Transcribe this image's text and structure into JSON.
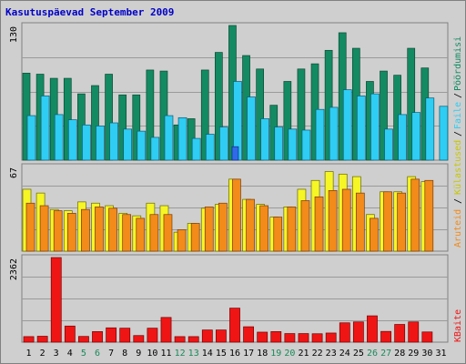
{
  "chart_data": {
    "type": "bar",
    "title": "Kasutuspäevad September 2009",
    "categories": [
      "1",
      "2",
      "3",
      "4",
      "5",
      "6",
      "7",
      "8",
      "9",
      "10",
      "11",
      "12",
      "13",
      "14",
      "15",
      "16",
      "17",
      "18",
      "19",
      "20",
      "21",
      "22",
      "23",
      "24",
      "25",
      "26",
      "27",
      "28",
      "29",
      "30",
      "31"
    ],
    "weekend_days": [
      "5",
      "6",
      "12",
      "13",
      "19",
      "20",
      "26",
      "27"
    ],
    "panels": [
      {
        "id": "visits",
        "ymax_label": "130",
        "ylim": [
          0,
          130
        ],
        "series": [
          {
            "name": "Pöördumisi",
            "color": "#138a62",
            "values": [
              84,
              83,
              79,
              79,
              64,
              72,
              83,
              63,
              63,
              87,
              86,
              34,
              40,
              87,
              104,
              130,
              101,
              88,
              53,
              76,
              88,
              93,
              106,
              123,
              108,
              76,
              86,
              82,
              108,
              89,
              0
            ]
          },
          {
            "name": "Faile",
            "color": "#2fcdf3",
            "values": [
              43,
              62,
              44,
              39,
              34,
              33,
              36,
              30,
              28,
              22,
              43,
              41,
              21,
              25,
              32,
              76,
              61,
              40,
              32,
              30,
              29,
              49,
              51,
              68,
              62,
              64,
              30,
              44,
              46,
              60,
              52
            ]
          },
          {
            "name": "Lehekülgi",
            "color": "#2f6be8",
            "values": [
              0,
              0,
              0,
              0,
              0,
              0,
              0,
              0,
              0,
              0,
              0,
              0,
              0,
              0,
              0,
              13,
              0,
              0,
              0,
              0,
              0,
              0,
              0,
              0,
              0,
              0,
              0,
              0,
              0,
              0,
              0
            ]
          }
        ]
      },
      {
        "id": "traffic",
        "ymax_label": "67",
        "ylim": [
          0,
          67
        ],
        "series": [
          {
            "name": "Külastused",
            "color": "#f6f627",
            "values": [
              49,
              46,
              33,
              32,
              39,
              38,
              36,
              30,
              28,
              38,
              36,
              15,
              22,
              34,
              37,
              57,
              41,
              37,
              27,
              35,
              49,
              56,
              63,
              61,
              59,
              29,
              47,
              47,
              59,
              55,
              0
            ]
          },
          {
            "name": "Aruteid",
            "color": "#f28b1a",
            "values": [
              38,
              36,
              32,
              30,
              33,
              35,
              34,
              29,
              26,
              29,
              29,
              17,
              22,
              35,
              38,
              57,
              41,
              36,
              27,
              35,
              40,
              43,
              48,
              49,
              46,
              26,
              47,
              46,
              57,
              56,
              0
            ]
          }
        ]
      },
      {
        "id": "kbytes",
        "ymax_label": "2362",
        "ylim": [
          0,
          2362
        ],
        "series": [
          {
            "name": "KBaite",
            "color": "#f01515",
            "values": [
              155,
              165,
              2362,
              450,
              160,
              295,
              400,
              390,
              185,
              390,
              690,
              155,
              155,
              340,
              340,
              950,
              430,
              280,
              295,
              240,
              240,
              235,
              255,
              540,
              565,
              735,
              300,
              495,
              565,
              285,
              0
            ]
          }
        ]
      }
    ]
  }
}
